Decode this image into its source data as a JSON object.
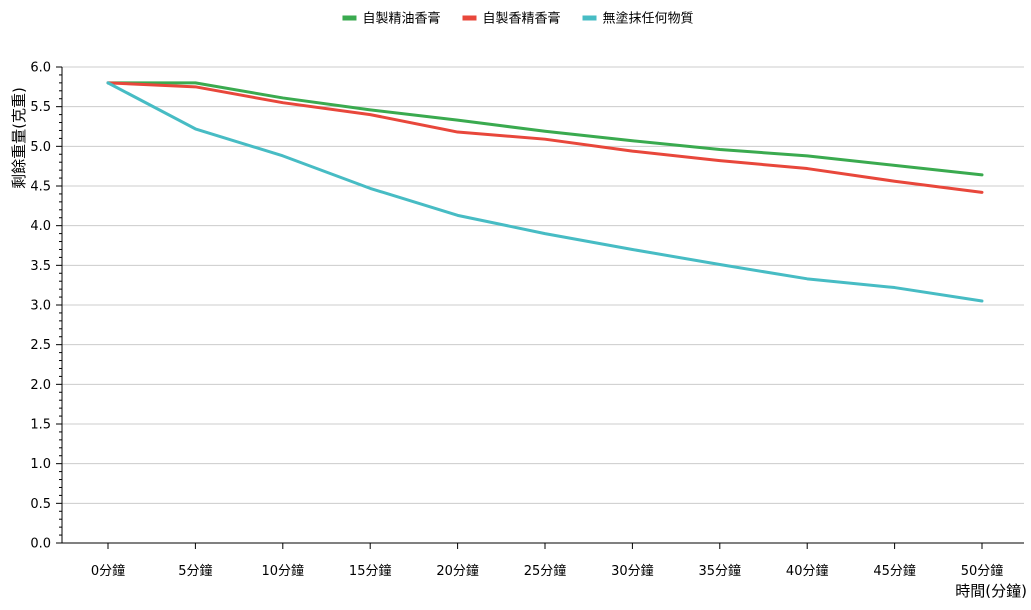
{
  "chart_data": {
    "type": "line",
    "title": "",
    "xlabel": "時間(分鐘)",
    "ylabel": "剩餘重量(克重)",
    "ylim": [
      0,
      6
    ],
    "y_ticks": [
      "0.0",
      "0.5",
      "1.0",
      "1.5",
      "2.0",
      "2.5",
      "3.0",
      "3.5",
      "4.0",
      "4.5",
      "5.0",
      "5.5",
      "6.0"
    ],
    "grid": "horizontal",
    "legend_position": "top-center",
    "categories": [
      "0分鐘",
      "5分鐘",
      "10分鐘",
      "15分鐘",
      "20分鐘",
      "25分鐘",
      "30分鐘",
      "35分鐘",
      "40分鐘",
      "45分鐘",
      "50分鐘"
    ],
    "series": [
      {
        "name": "自製精油香膏",
        "color": "#3aaa4f",
        "values": [
          5.8,
          5.8,
          5.61,
          5.46,
          5.33,
          5.19,
          5.07,
          4.96,
          4.88,
          4.76,
          4.64
        ]
      },
      {
        "name": "自製香精香膏",
        "color": "#e8473b",
        "values": [
          5.8,
          5.75,
          5.55,
          5.4,
          5.18,
          5.09,
          4.94,
          4.82,
          4.72,
          4.56,
          4.42
        ]
      },
      {
        "name": "無塗抹任何物質",
        "color": "#47bcc4",
        "values": [
          5.8,
          5.22,
          4.88,
          4.47,
          4.13,
          3.9,
          3.7,
          3.51,
          3.33,
          3.22,
          3.05
        ]
      }
    ]
  }
}
